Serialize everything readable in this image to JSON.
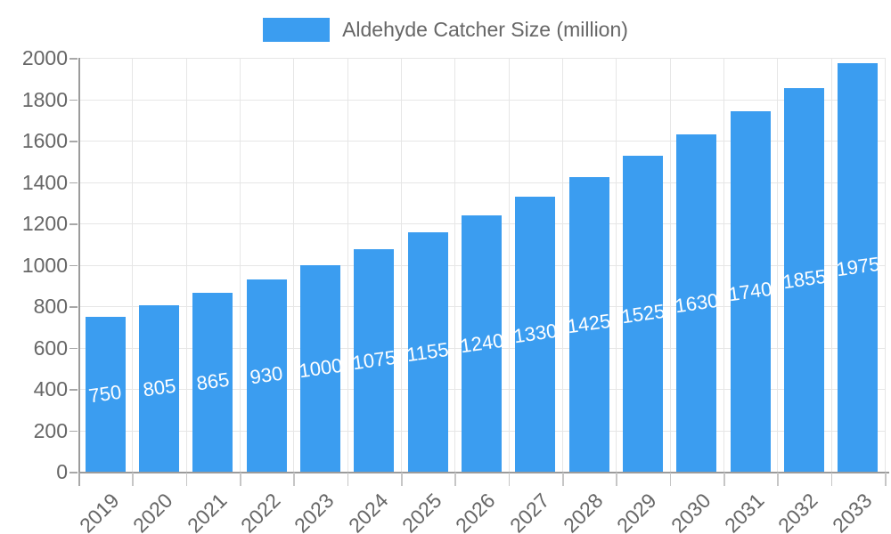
{
  "chart_data": {
    "type": "bar",
    "title": "",
    "legend": {
      "label": "Aldehyde Catcher Size (million)",
      "position": "top"
    },
    "categories": [
      "2019",
      "2020",
      "2021",
      "2022",
      "2023",
      "2024",
      "2025",
      "2026",
      "2027",
      "2028",
      "2029",
      "2030",
      "2031",
      "2032",
      "2033"
    ],
    "series": [
      {
        "name": "Aldehyde Catcher Size (million)",
        "values": [
          750,
          805,
          865,
          930,
          1000,
          1075,
          1155,
          1240,
          1330,
          1425,
          1525,
          1630,
          1740,
          1855,
          1975
        ]
      }
    ],
    "xlabel": "",
    "ylabel": "",
    "ylim": [
      0,
      2000
    ],
    "yticks": [
      0,
      200,
      400,
      600,
      800,
      1000,
      1200,
      1400,
      1600,
      1800,
      2000
    ],
    "grid": true,
    "data_labels_inside_bars": true,
    "colors": {
      "bar": "#3B9DF0",
      "bar_value_label": "#FFFFFF",
      "axis_text": "#666666",
      "gridline": "#E6E6E6",
      "axis_line": "#9B9B9B"
    }
  }
}
